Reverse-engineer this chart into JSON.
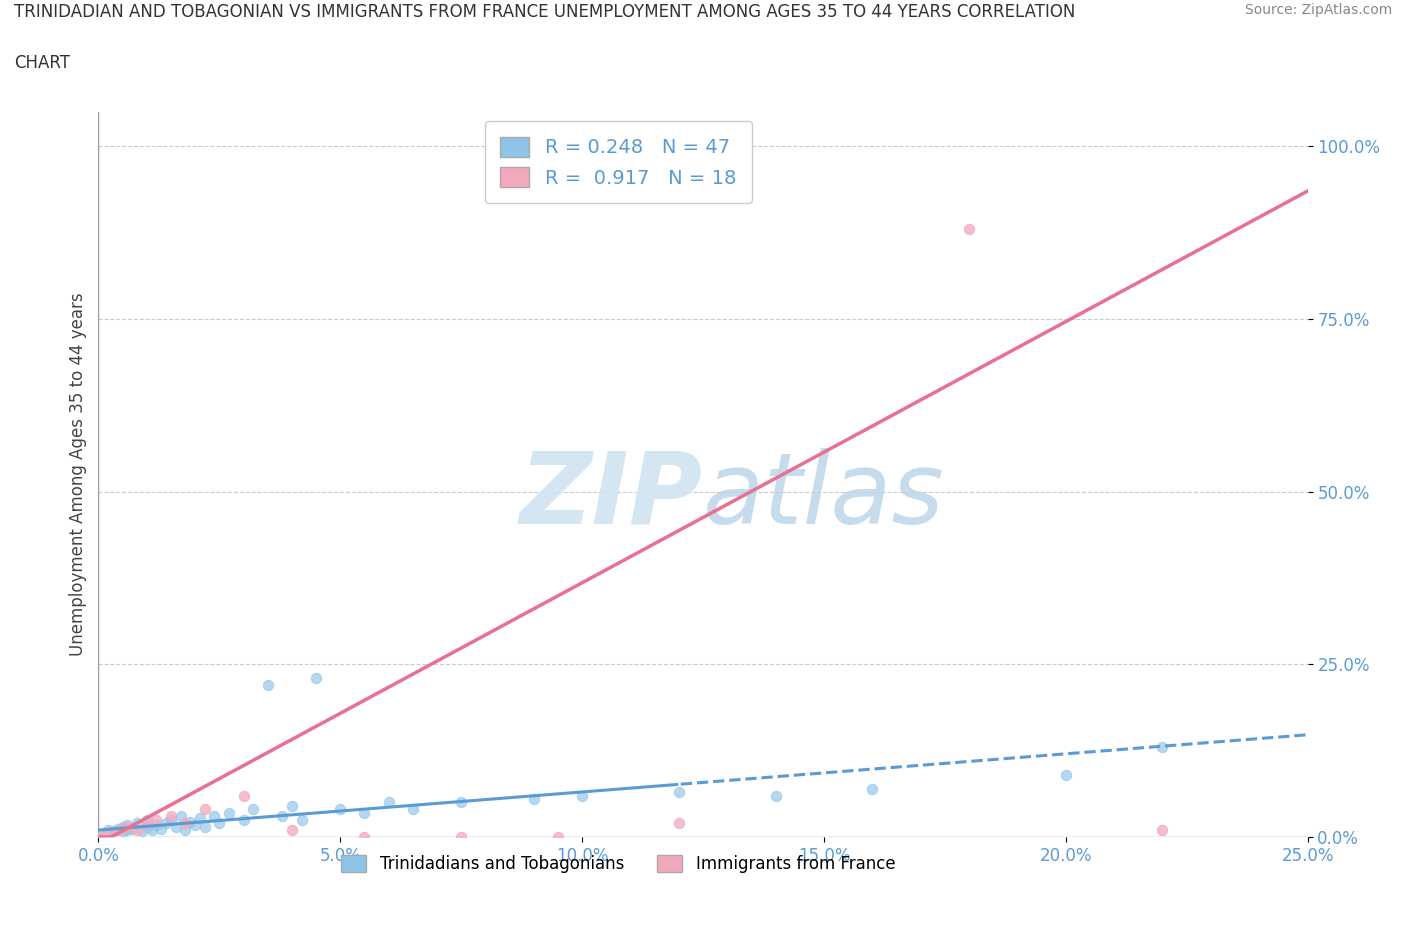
{
  "title_line1": "TRINIDADIAN AND TOBAGONIAN VS IMMIGRANTS FROM FRANCE UNEMPLOYMENT AMONG AGES 35 TO 44 YEARS CORRELATION",
  "title_line2": "CHART",
  "source": "Source: ZipAtlas.com",
  "ylabel": "Unemployment Among Ages 35 to 44 years",
  "r_blue": 0.248,
  "n_blue": 47,
  "r_pink": 0.917,
  "n_pink": 18,
  "blue_color": "#8ec4e8",
  "pink_color": "#f4a8bc",
  "blue_line_color": "#5b9bd5",
  "pink_line_color": "#e87090",
  "watermark_color": "#d0e4f0",
  "xlim": [
    0.0,
    0.25
  ],
  "ylim": [
    0.0,
    1.05
  ],
  "xticks": [
    0.0,
    0.05,
    0.1,
    0.15,
    0.2,
    0.25
  ],
  "yticks_right": [
    0.0,
    0.25,
    0.5,
    0.75,
    1.0
  ],
  "tick_color": "#5b9bd5",
  "background_color": "#ffffff",
  "grid_color": "#cccccc",
  "blue_x": [
    0.0,
    0.002,
    0.003,
    0.004,
    0.005,
    0.005,
    0.006,
    0.006,
    0.007,
    0.008,
    0.009,
    0.01,
    0.01,
    0.011,
    0.012,
    0.013,
    0.014,
    0.015,
    0.016,
    0.017,
    0.018,
    0.019,
    0.02,
    0.021,
    0.022,
    0.024,
    0.025,
    0.027,
    0.03,
    0.032,
    0.035,
    0.038,
    0.04,
    0.042,
    0.045,
    0.05,
    0.055,
    0.06,
    0.065,
    0.075,
    0.09,
    0.1,
    0.12,
    0.14,
    0.16,
    0.2,
    0.22
  ],
  "blue_y": [
    0.005,
    0.01,
    0.008,
    0.012,
    0.015,
    0.008,
    0.01,
    0.018,
    0.012,
    0.02,
    0.008,
    0.015,
    0.025,
    0.01,
    0.018,
    0.012,
    0.02,
    0.025,
    0.015,
    0.03,
    0.01,
    0.022,
    0.018,
    0.028,
    0.015,
    0.03,
    0.02,
    0.035,
    0.025,
    0.04,
    0.22,
    0.03,
    0.045,
    0.025,
    0.23,
    0.04,
    0.035,
    0.05,
    0.04,
    0.05,
    0.055,
    0.06,
    0.065,
    0.06,
    0.07,
    0.09,
    0.13
  ],
  "pink_x": [
    0.0,
    0.002,
    0.004,
    0.006,
    0.008,
    0.01,
    0.012,
    0.015,
    0.018,
    0.022,
    0.03,
    0.04,
    0.055,
    0.075,
    0.095,
    0.12,
    0.18,
    0.22
  ],
  "pink_y": [
    0.0,
    0.005,
    0.01,
    0.015,
    0.01,
    0.02,
    0.025,
    0.03,
    0.02,
    0.04,
    0.06,
    0.01,
    0.0,
    0.0,
    0.0,
    0.02,
    0.88,
    0.01
  ],
  "blue_trend_x": [
    0.0,
    0.25
  ],
  "blue_trend_y_start": 0.01,
  "blue_trend_y_mid": 0.04,
  "blue_trend_y_end": 0.148,
  "pink_trend_slope": 3.78,
  "pink_trend_intercept": -0.01
}
